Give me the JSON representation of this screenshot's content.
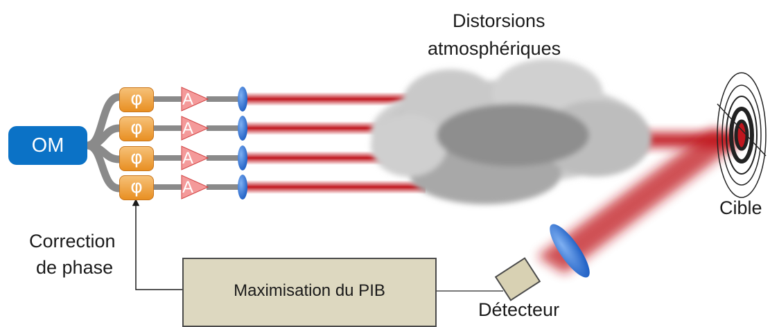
{
  "source_label": "OM",
  "phase_symbol": "φ",
  "amplifier_symbol": "A",
  "cloud_label": [
    "Distorsions",
    "atmosphériques"
  ],
  "target_label": "Cible",
  "correction_label": [
    "Correction",
    "de phase"
  ],
  "controller_label": "Maximisation du PIB",
  "detector_label": "Détecteur",
  "colors": {
    "source": "#0b72c6",
    "phase_modulator": "#f0a24a",
    "amplifier": "#f08a8a",
    "lens": "#2f6fd6",
    "beam": "#c0161e",
    "controller": "#ddd8c0",
    "detector": "#d8d1b3"
  }
}
